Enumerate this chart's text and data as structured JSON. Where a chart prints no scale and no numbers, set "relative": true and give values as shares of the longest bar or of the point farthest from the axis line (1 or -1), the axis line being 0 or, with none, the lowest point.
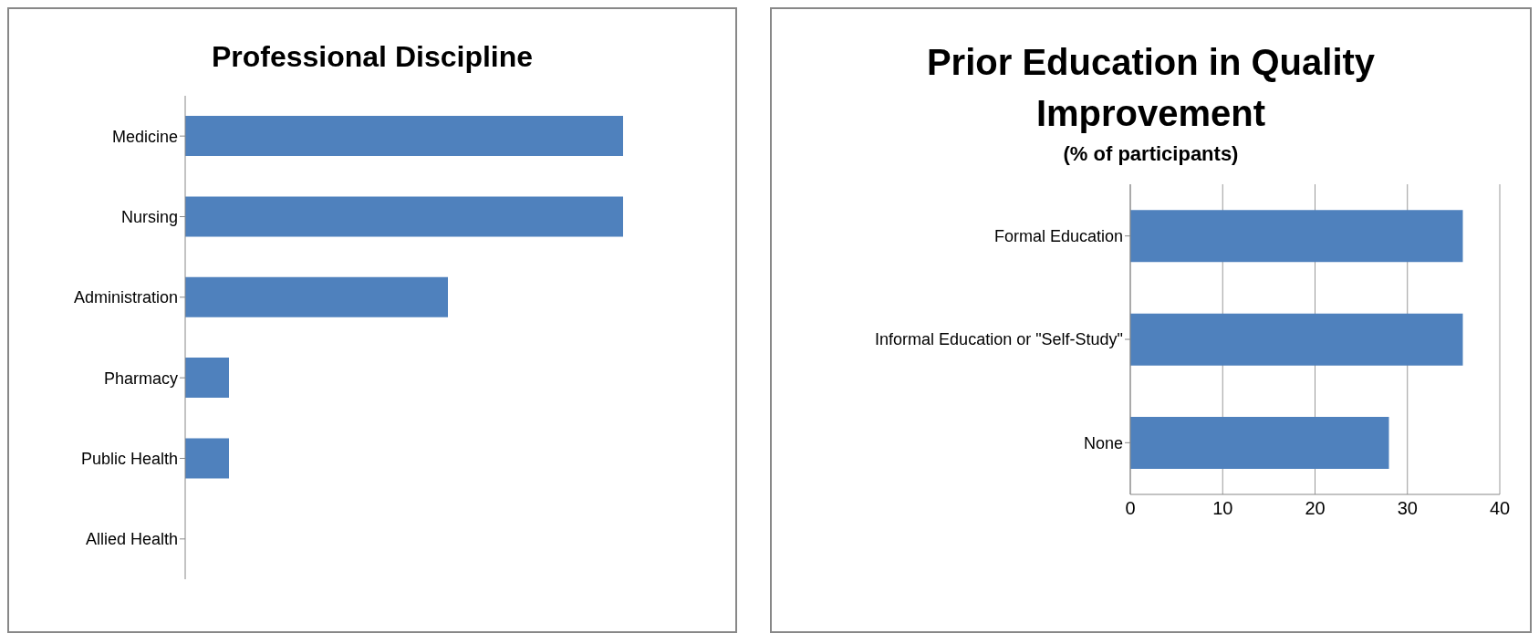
{
  "chart_data": [
    {
      "type": "bar",
      "title": "Professional Discipline",
      "orientation": "horizontal",
      "relative": true,
      "categories": [
        "Medicine",
        "Nursing",
        "Administration",
        "Pharmacy",
        "Public Health",
        "Allied Health"
      ],
      "values": [
        1,
        1,
        0.6,
        0.1,
        0.1,
        0
      ],
      "color": "#4f81bd"
    },
    {
      "type": "bar",
      "title": "Prior Education in Quality Improvement",
      "subtitle": "(% of participants)",
      "orientation": "horizontal",
      "categories": [
        "Formal Education",
        "Informal Education or \"Self-Study\"",
        "None"
      ],
      "values": [
        36,
        36,
        28
      ],
      "color": "#4f81bd",
      "xlim": [
        0,
        40
      ],
      "xticks": [
        0,
        10,
        20,
        30,
        40
      ],
      "grid": "x"
    }
  ]
}
